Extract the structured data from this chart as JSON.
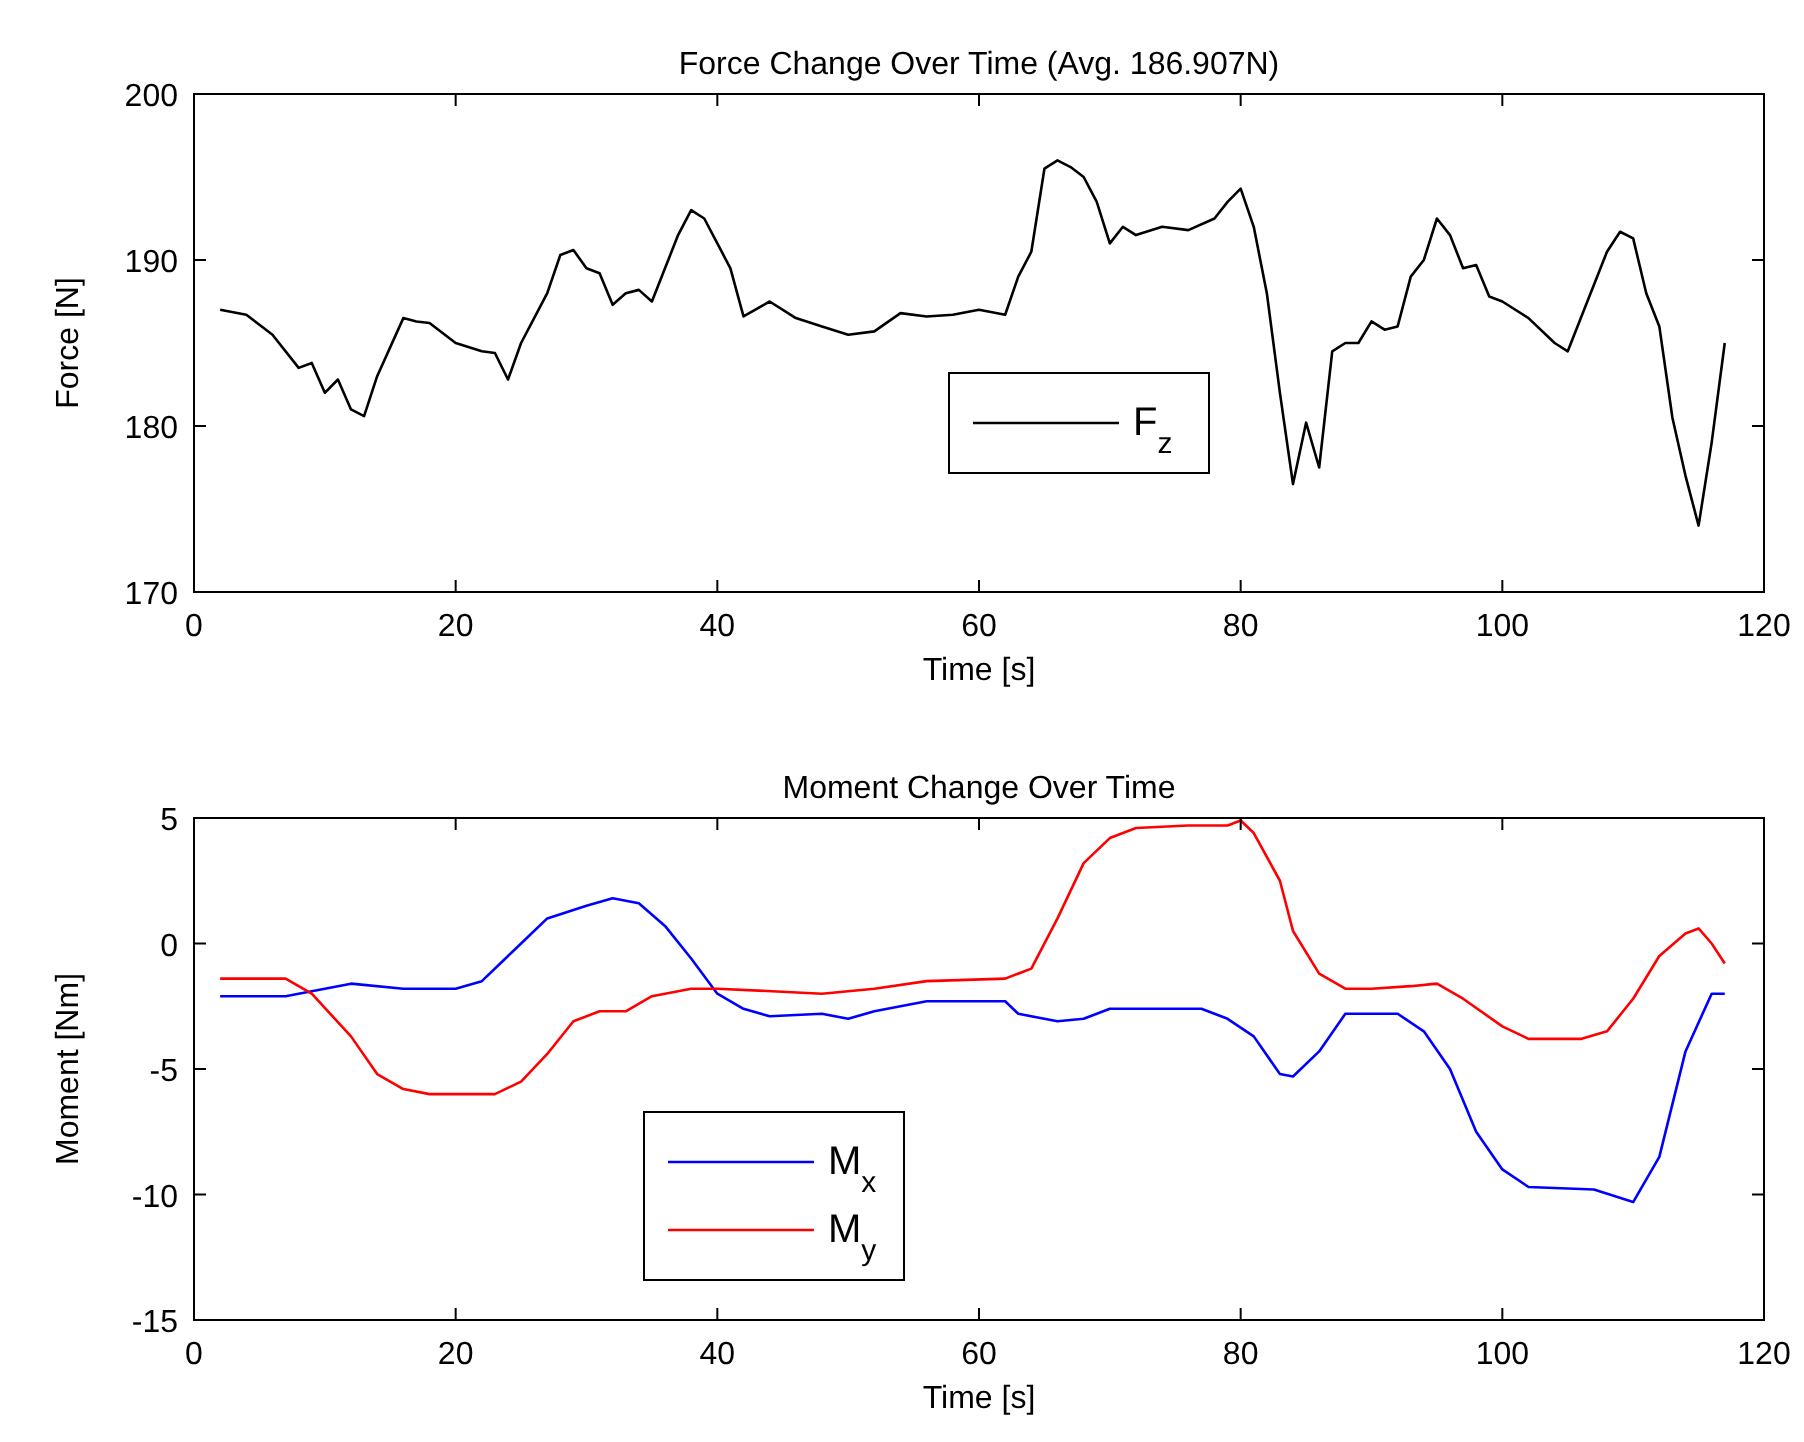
{
  "chart_data": [
    {
      "type": "line",
      "title": "Force Change Over Time (Avg. 186.907N)",
      "xlabel": "Time [s]",
      "ylabel": "Force [N]",
      "xlim": [
        0,
        120
      ],
      "xticks": [
        0,
        20,
        40,
        60,
        80,
        100,
        120
      ],
      "ylim": [
        170,
        200
      ],
      "yticks": [
        170,
        180,
        190,
        200
      ],
      "legend": "center",
      "grid": false,
      "series": [
        {
          "name": "F$_{z}$",
          "color": "#000000",
          "x": [
            2,
            4,
            6,
            8,
            9,
            10,
            11,
            12,
            13,
            14,
            16,
            17,
            18,
            20,
            22,
            23,
            24,
            25,
            26,
            27,
            28,
            29,
            30,
            31,
            32,
            33,
            34,
            35,
            36,
            37,
            38,
            39,
            40,
            41,
            42,
            44,
            46,
            48,
            50,
            52,
            54,
            56,
            58,
            60,
            62,
            63,
            64,
            65,
            66,
            67,
            68,
            69,
            70,
            71,
            72,
            74,
            76,
            78,
            79,
            80,
            81,
            82,
            83,
            84,
            85,
            86,
            87,
            88,
            89,
            90,
            91,
            92,
            93,
            94,
            95,
            96,
            97,
            98,
            99,
            100,
            102,
            104,
            105,
            106,
            108,
            109,
            110,
            111,
            112,
            113,
            114,
            115,
            116,
            117
          ],
          "values": [
            187,
            186.7,
            185.5,
            183.5,
            183.8,
            182,
            182.8,
            181,
            180.6,
            183,
            186.5,
            186.3,
            186.2,
            185,
            184.5,
            184.4,
            182.8,
            185,
            186.5,
            188,
            190.3,
            190.6,
            189.5,
            189.2,
            187.3,
            188,
            188.2,
            187.5,
            189.5,
            191.5,
            193,
            192.5,
            191,
            189.5,
            186.6,
            187.5,
            186.5,
            186,
            185.5,
            185.7,
            186.8,
            186.6,
            186.7,
            187,
            186.7,
            189,
            190.5,
            195.5,
            196,
            195.6,
            195,
            193.5,
            191,
            192,
            191.5,
            192,
            191.8,
            192.5,
            193.5,
            194.3,
            192,
            188,
            182,
            176.5,
            180.2,
            177.5,
            184.5,
            185,
            185,
            186.3,
            185.8,
            186,
            189,
            190,
            192.5,
            191.5,
            189.5,
            189.7,
            187.8,
            187.5,
            186.5,
            185,
            184.5,
            186.5,
            190.5,
            191.7,
            191.3,
            188,
            186,
            180.5,
            177,
            174,
            179,
            185
          ]
        }
      ]
    },
    {
      "type": "line",
      "title": "Moment Change Over Time",
      "xlabel": "Time [s]",
      "ylabel": "Moment [Nm]",
      "xlim": [
        0,
        120
      ],
      "xticks": [
        0,
        20,
        40,
        60,
        80,
        100,
        120
      ],
      "ylim": [
        -15,
        5
      ],
      "yticks": [
        -15,
        -10,
        -5,
        0,
        5
      ],
      "legend": "bottom left",
      "grid": false,
      "series": [
        {
          "name": "M$_{x}$",
          "color": "#0000ff",
          "x": [
            2,
            7,
            9,
            12,
            16,
            20,
            22,
            25,
            27,
            30,
            32,
            34,
            36,
            38,
            40,
            42,
            44,
            48,
            50,
            52,
            56,
            60,
            62,
            63,
            66,
            68,
            70,
            74,
            77,
            79,
            81,
            83,
            84,
            86,
            88,
            92,
            94,
            96,
            98,
            100,
            102,
            107,
            110,
            112,
            114,
            116,
            117
          ],
          "values": [
            -2.1,
            -2.1,
            -1.9,
            -1.6,
            -1.8,
            -1.8,
            -1.5,
            0,
            1,
            1.5,
            1.8,
            1.6,
            0.7,
            -0.6,
            -2,
            -2.6,
            -2.9,
            -2.8,
            -3,
            -2.7,
            -2.3,
            -2.3,
            -2.3,
            -2.8,
            -3.1,
            -3,
            -2.6,
            -2.6,
            -2.6,
            -3,
            -3.7,
            -5.2,
            -5.3,
            -4.3,
            -2.8,
            -2.8,
            -3.5,
            -5,
            -7.5,
            -9,
            -9.7,
            -9.8,
            -10.3,
            -8.5,
            -4.3,
            -2,
            -2
          ]
        },
        {
          "name": "M$_{y}$",
          "color": "#ff0000",
          "x": [
            2,
            7,
            9,
            12,
            14,
            16,
            18,
            23,
            25,
            27,
            29,
            31,
            33,
            35,
            38,
            40,
            48,
            52,
            56,
            62,
            64,
            66,
            68,
            70,
            72,
            76,
            79,
            80,
            81,
            83,
            84,
            86,
            88,
            90,
            93,
            95,
            97,
            100,
            102,
            106,
            108,
            110,
            112,
            114,
            115,
            116,
            117
          ],
          "values": [
            -1.4,
            -1.4,
            -2,
            -3.7,
            -5.2,
            -5.8,
            -6,
            -6,
            -5.5,
            -4.4,
            -3.1,
            -2.7,
            -2.7,
            -2.1,
            -1.8,
            -1.8,
            -2,
            -1.8,
            -1.5,
            -1.4,
            -1,
            1,
            3.2,
            4.2,
            4.6,
            4.7,
            4.7,
            4.9,
            4.4,
            2.5,
            0.5,
            -1.2,
            -1.8,
            -1.8,
            -1.7,
            -1.6,
            -2.2,
            -3.3,
            -3.8,
            -3.8,
            -3.5,
            -2.2,
            -0.5,
            0.4,
            0.6,
            0,
            -0.8
          ]
        }
      ]
    }
  ]
}
